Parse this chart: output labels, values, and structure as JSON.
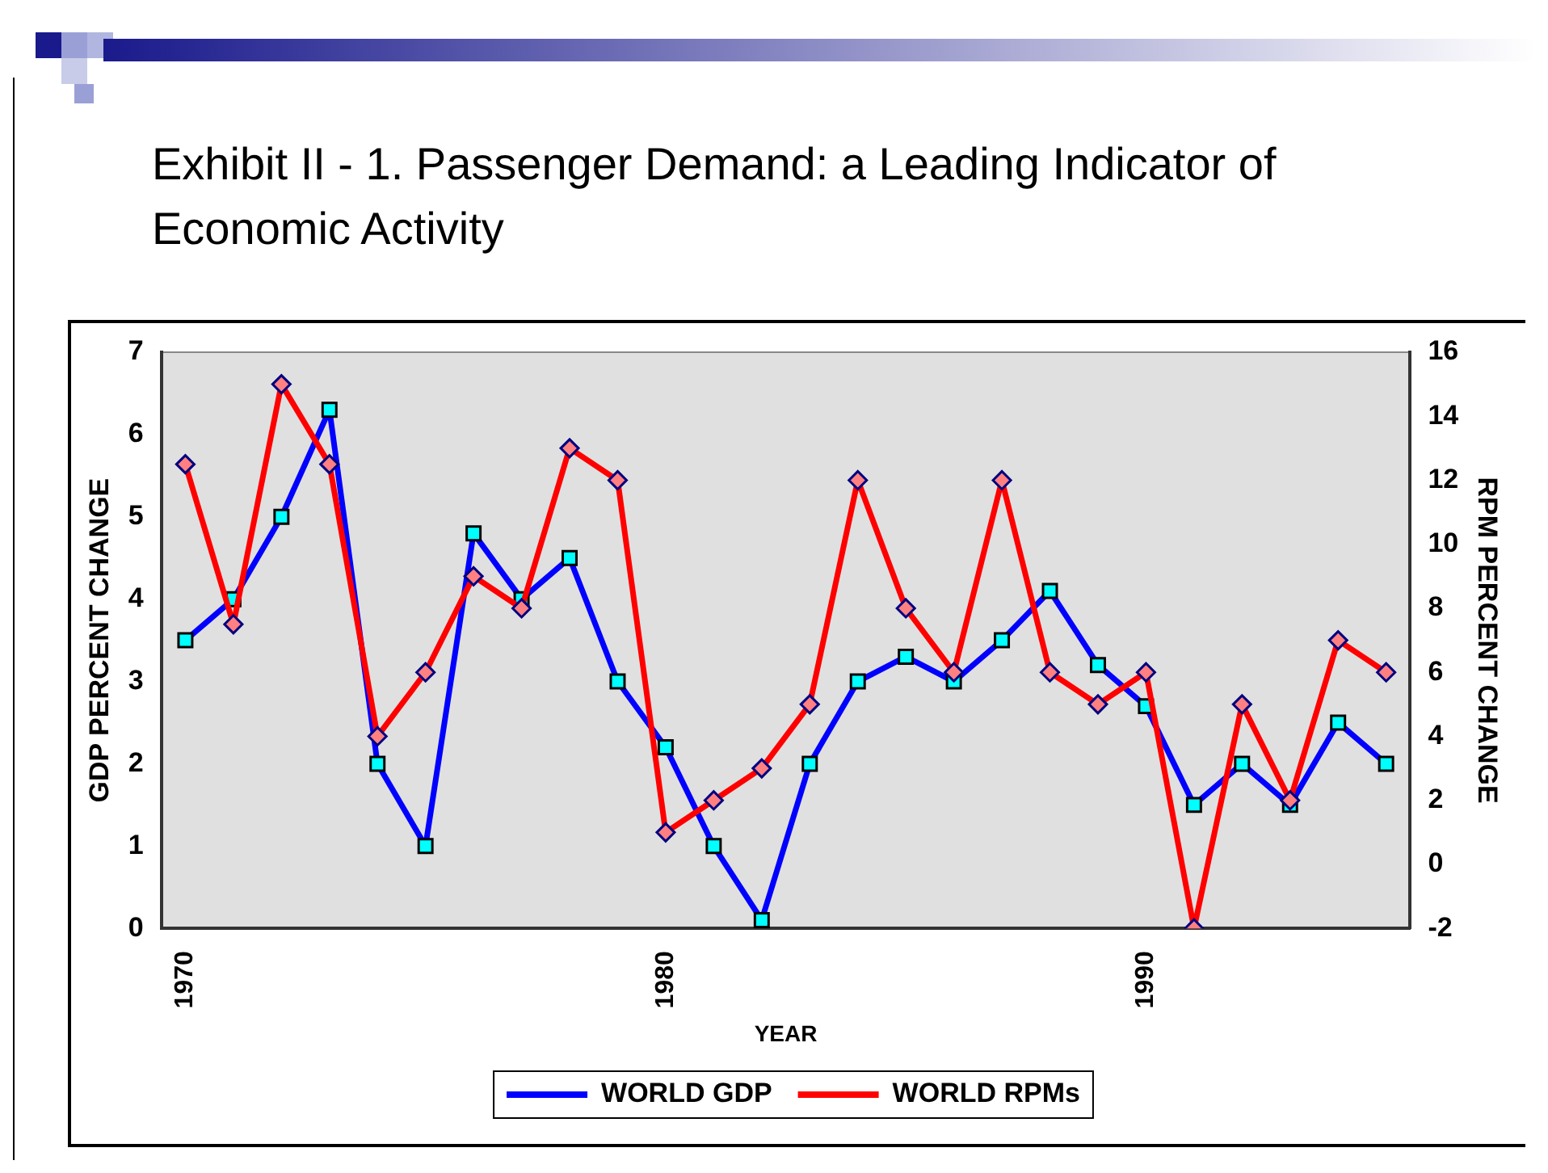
{
  "chart_data": {
    "type": "line",
    "title": "Exhibit II - 1. Passenger Demand: a Leading Indicator of Economic Activity",
    "xlabel": "YEAR",
    "ylabel": "GDP PERCENT CHANGE",
    "y2label": "RPM PERCENT CHANGE",
    "categories": [
      "1970",
      null,
      null,
      null,
      null,
      null,
      null,
      null,
      null,
      null,
      "1980",
      null,
      null,
      null,
      null,
      null,
      null,
      null,
      null,
      null,
      "1990",
      null,
      null,
      null,
      null,
      null
    ],
    "series": [
      {
        "name": "WORLD GDP",
        "color": "#0000ff",
        "marker": "square",
        "values": [
          3.5,
          4.0,
          5.0,
          6.3,
          2.0,
          1.0,
          4.8,
          4.0,
          4.5,
          3.0,
          2.2,
          1.0,
          0.1,
          2.0,
          3.0,
          3.3,
          3.0,
          3.5,
          4.1,
          3.2,
          2.7,
          1.5,
          2.0,
          1.5,
          2.5,
          2.0
        ]
      },
      {
        "name": "WORLD RPMs",
        "color": "#ff0000",
        "marker": "diamond",
        "axis": "y2",
        "values": [
          12.5,
          7.5,
          15,
          12.5,
          4,
          6,
          9,
          8,
          13,
          12,
          1,
          2,
          3,
          5,
          12,
          8,
          6,
          12,
          6,
          5,
          6,
          -2,
          5,
          2,
          7,
          6
        ]
      }
    ],
    "ylim": [
      0,
      7
    ],
    "yticks": [
      0,
      1,
      2,
      3,
      4,
      5,
      6,
      7
    ],
    "y2lim": [
      -2,
      16
    ],
    "y2ticks": [
      -2,
      0,
      2,
      4,
      6,
      8,
      10,
      12,
      14,
      16
    ],
    "grid": false,
    "legend": "bottom",
    "line_style": "solid"
  }
}
